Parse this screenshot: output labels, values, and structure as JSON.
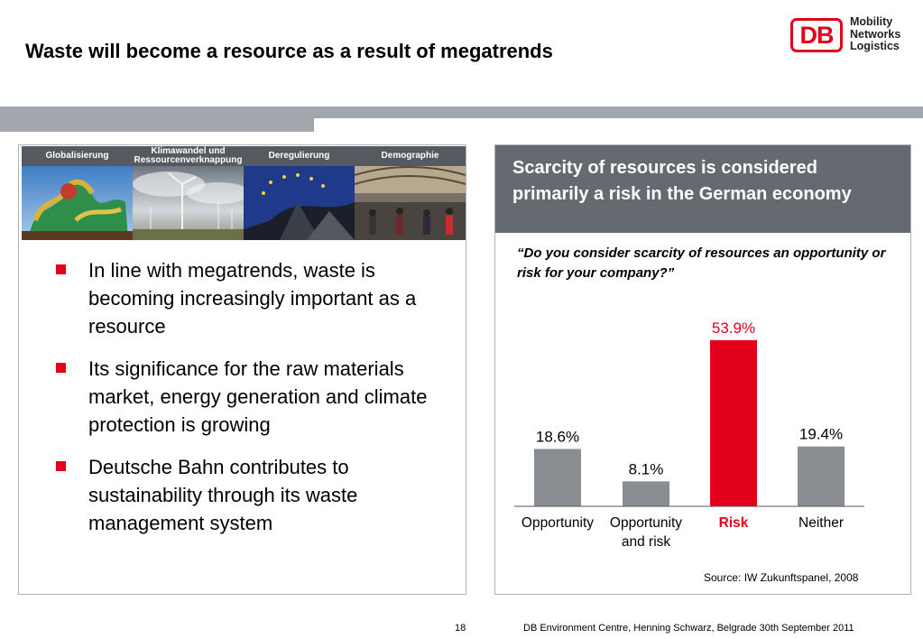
{
  "slide": {
    "title": "Waste will become a resource as a result of megatrends",
    "logo": {
      "abbr": "DB",
      "lines": [
        "Mobility",
        "Networks",
        "Logistics"
      ]
    },
    "megatrends": [
      {
        "label": "Globalisierung"
      },
      {
        "label": "Klimawandel und Ressourcenverknappung"
      },
      {
        "label": "Deregulierung"
      },
      {
        "label": "Demographie"
      }
    ],
    "bullets": [
      "In line with megatrends, waste is becoming increasingly important as a resource",
      "Its significance for the raw materials market, energy generation and climate protection is growing",
      "Deutsche Bahn contributes to sustainability through its waste management system"
    ],
    "right_heading": "Scarcity of resources is considered primarily a risk in the German economy",
    "question": "“Do you consider scarcity of resources an opportunity or risk for your company?”",
    "source": "Source: IW Zukunftspanel, 2008",
    "footer": {
      "page": "18",
      "text": "DB Environment Centre, Henning Schwarz, Belgrade 30th September 2011"
    }
  },
  "colors": {
    "db_red": "#e2001a",
    "bar_grey": "#8a8e93",
    "header_grey": "#646a70"
  },
  "chart_data": {
    "type": "bar",
    "categories": [
      "Opportunity",
      "Opportunity and risk",
      "Risk",
      "Neither"
    ],
    "category_lines": [
      [
        "Opportunity"
      ],
      [
        "Opportunity",
        "and risk"
      ],
      [
        "Risk"
      ],
      [
        "Neither"
      ]
    ],
    "values": [
      18.6,
      8.1,
      53.9,
      19.4
    ],
    "value_labels": [
      "18.6%",
      "8.1%",
      "53.9%",
      "19.4%"
    ],
    "highlight_index": 2,
    "unit": "%",
    "ylim": [
      0,
      60
    ],
    "grid": false
  }
}
